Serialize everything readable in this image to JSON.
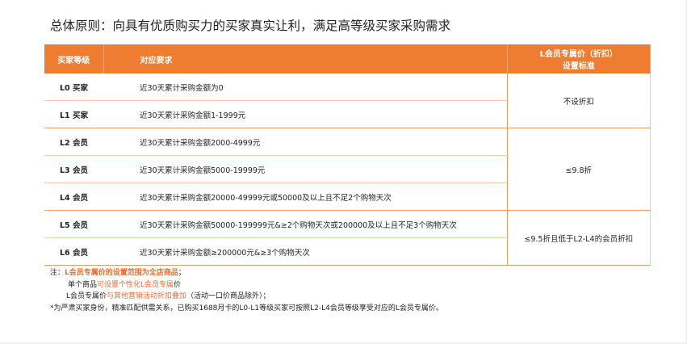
{
  "title": "总体原则：向具有优质购买力的买家真实让利，满足高等级买家采购需求",
  "table": {
    "headers": [
      "买家等级",
      "对应要求",
      "L会员专属价（折扣）",
      "设置标准"
    ],
    "rows": [
      {
        "level": "L0 买家",
        "req": "近30天累计采购金额为0"
      },
      {
        "level": "L1 买家",
        "req": "近30天累计采购金额1-1999元"
      },
      {
        "level": "L2 会员",
        "req": "近30天累计采购金额2000-4999元"
      },
      {
        "level": "L3 会员",
        "req": "近30天累计采购金额5000-19999元"
      },
      {
        "level": "L4 会员",
        "req": "近30天累计采购金额20000-49999元或50000及以上且不足2个购物天次"
      },
      {
        "level": "L5 会员",
        "req": "近30天累计采购金额50000-199999元&≥2个购物天次或200000及以上且不足3个购物天次"
      },
      {
        "level": "L6 会员",
        "req": "近30天累计采购金额≥200000元&≥3个购物天次"
      }
    ],
    "standards": [
      "不设折扣",
      "≤9.8折",
      "≤9.5折且低于L2-L4的会员折扣"
    ]
  },
  "notes": {
    "n1_prefix": "注：",
    "n1_hl": "L会员专属价的设置范围为全店商品",
    "n1_suffix": "；",
    "n2_prefix": "单个商品",
    "n2_hl": "可设置个性化L会员专属",
    "n2_suffix": "价",
    "n3_prefix": "L会员专属价",
    "n3_hl": "与其他营销活动折扣叠加",
    "n3_suffix": "（活动一口价商品除外）；",
    "n4": "*为严肃买家身份，精准匹配供需关系，已购买1688月卡的L0-L1等级买家可按照L2-L4会员等级享受对应的L会员专属价。"
  },
  "colors": {
    "accent": "#ee7d31",
    "highlight": "#ee6a2a"
  }
}
